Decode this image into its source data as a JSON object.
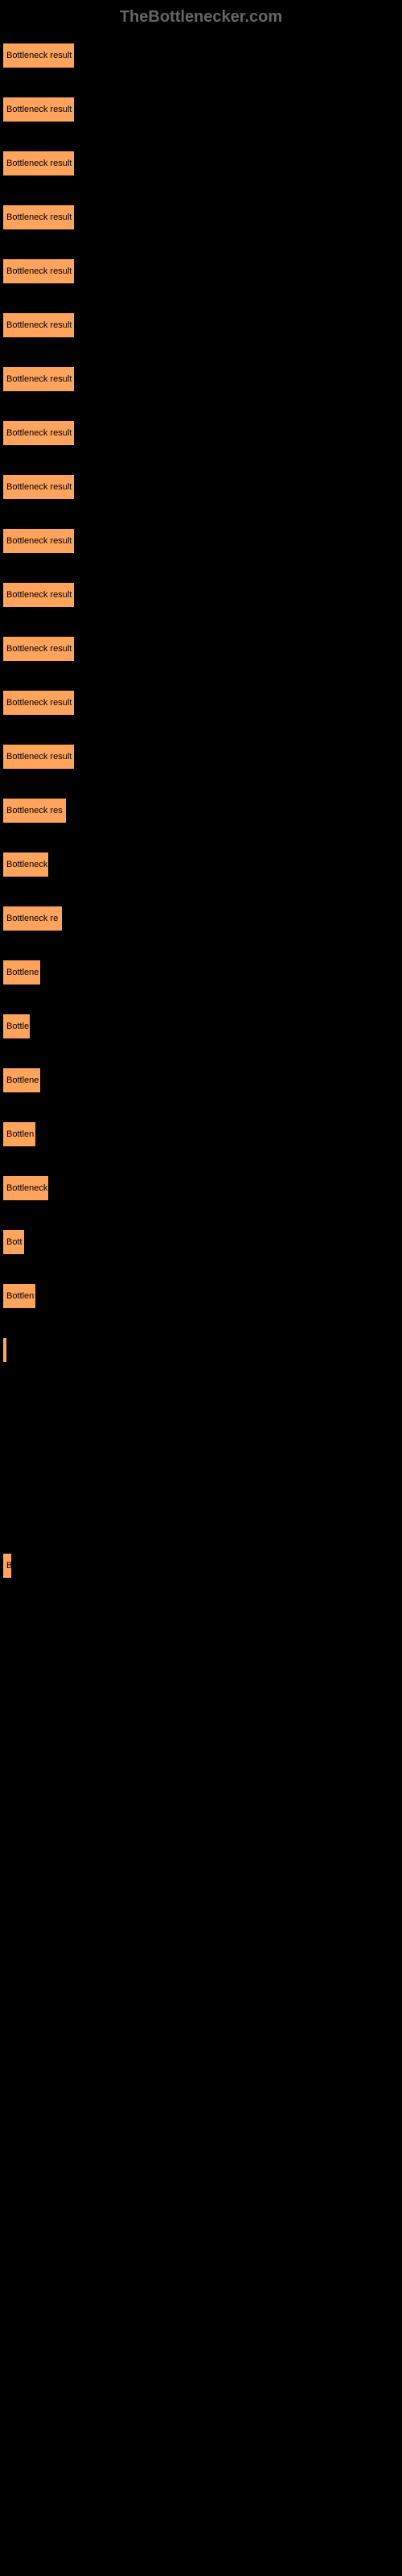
{
  "header": "TheBottlenecker.com",
  "chart": {
    "type": "bar",
    "bar_color": "#ffa35d",
    "bar_border_color": "#000000",
    "text_color": "#000000",
    "background_color": "#000000",
    "header_color": "#666666",
    "font_size": 11,
    "bars": [
      {
        "label": "Bottleneck result",
        "width": 90
      },
      {
        "label": "Bottleneck result",
        "width": 90
      },
      {
        "label": "Bottleneck result",
        "width": 90
      },
      {
        "label": "Bottleneck result",
        "width": 90
      },
      {
        "label": "Bottleneck result",
        "width": 90
      },
      {
        "label": "Bottleneck result",
        "width": 90
      },
      {
        "label": "Bottleneck result",
        "width": 90
      },
      {
        "label": "Bottleneck result",
        "width": 90
      },
      {
        "label": "Bottleneck result",
        "width": 90
      },
      {
        "label": "Bottleneck result",
        "width": 90
      },
      {
        "label": "Bottleneck result",
        "width": 90
      },
      {
        "label": "Bottleneck result",
        "width": 90
      },
      {
        "label": "Bottleneck result",
        "width": 90
      },
      {
        "label": "Bottleneck result",
        "width": 90
      },
      {
        "label": "Bottleneck res",
        "width": 80
      },
      {
        "label": "Bottleneck",
        "width": 58
      },
      {
        "label": "Bottleneck re",
        "width": 75
      },
      {
        "label": "Bottlene",
        "width": 48
      },
      {
        "label": "Bottle",
        "width": 35
      },
      {
        "label": "Bottlene",
        "width": 48
      },
      {
        "label": "Bottlen",
        "width": 42
      },
      {
        "label": "Bottleneck",
        "width": 58
      },
      {
        "label": "Bott",
        "width": 28
      },
      {
        "label": "Bottlen",
        "width": 42
      },
      {
        "label": "",
        "width": 3
      },
      {
        "label": "",
        "width": 0
      },
      {
        "label": "",
        "width": 0
      },
      {
        "label": "",
        "width": 0
      },
      {
        "label": "B",
        "width": 12
      },
      {
        "label": "",
        "width": 0
      },
      {
        "label": "",
        "width": 0
      },
      {
        "label": "",
        "width": 0
      },
      {
        "label": "",
        "width": 0
      },
      {
        "label": "",
        "width": 0
      },
      {
        "label": "",
        "width": 0
      },
      {
        "label": "",
        "width": 0
      },
      {
        "label": "",
        "width": 0
      },
      {
        "label": "",
        "width": 0
      },
      {
        "label": "",
        "width": 0
      },
      {
        "label": "",
        "width": 0
      },
      {
        "label": "",
        "width": 0
      },
      {
        "label": "",
        "width": 0
      },
      {
        "label": "",
        "width": 0
      },
      {
        "label": "",
        "width": 0
      },
      {
        "label": "",
        "width": 0
      },
      {
        "label": "",
        "width": 0
      }
    ]
  }
}
